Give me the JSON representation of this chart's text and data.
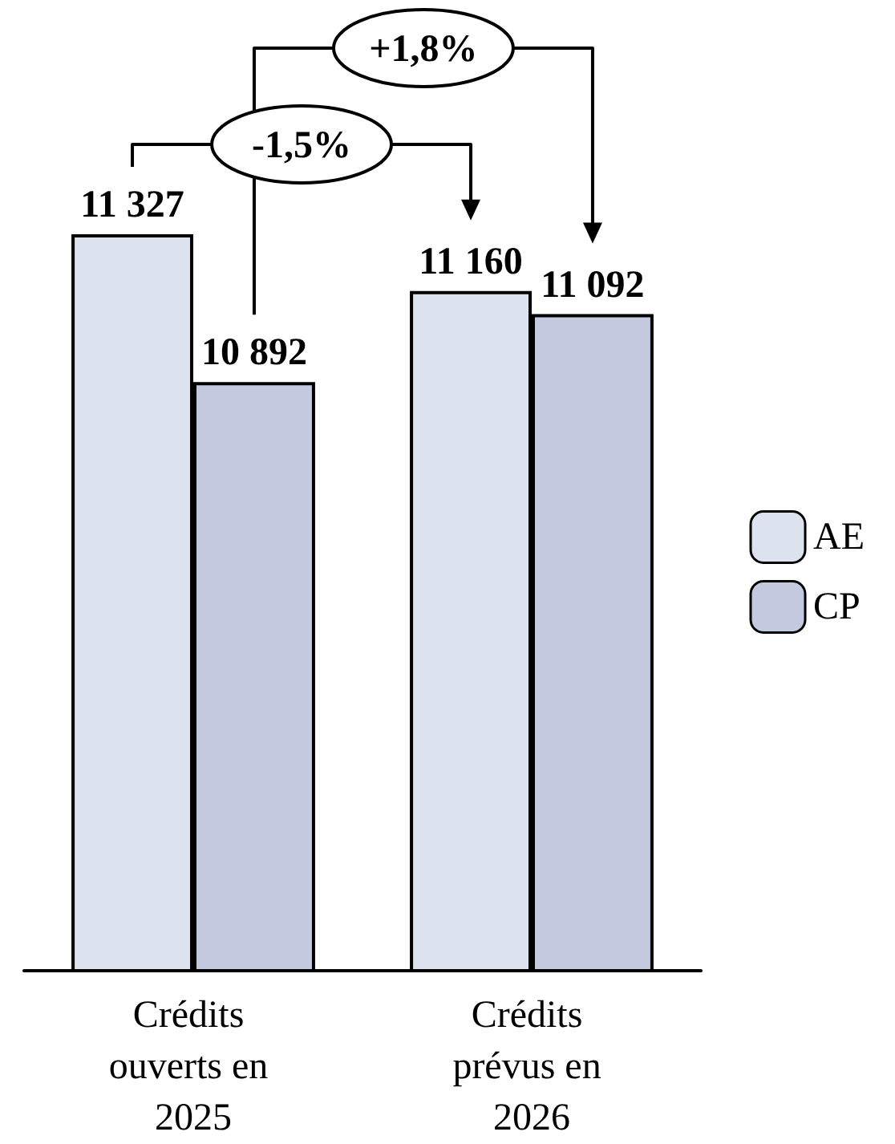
{
  "chart_data": {
    "type": "bar",
    "categories": [
      "Crédits ouverts en 2025",
      "Crédits prévus en 2026"
    ],
    "series": [
      {
        "name": "AE",
        "color": "#dde3ee",
        "values": [
          11327,
          11160
        ]
      },
      {
        "name": "CP",
        "color": "#c3cadf",
        "values": [
          10892,
          11092
        ]
      }
    ],
    "ylim": [
      9160,
      11327
    ],
    "tick_labels": "x",
    "data_labels": true,
    "legend": "right",
    "annotations": [
      "+1,8%",
      "-1,5%"
    ]
  }
}
